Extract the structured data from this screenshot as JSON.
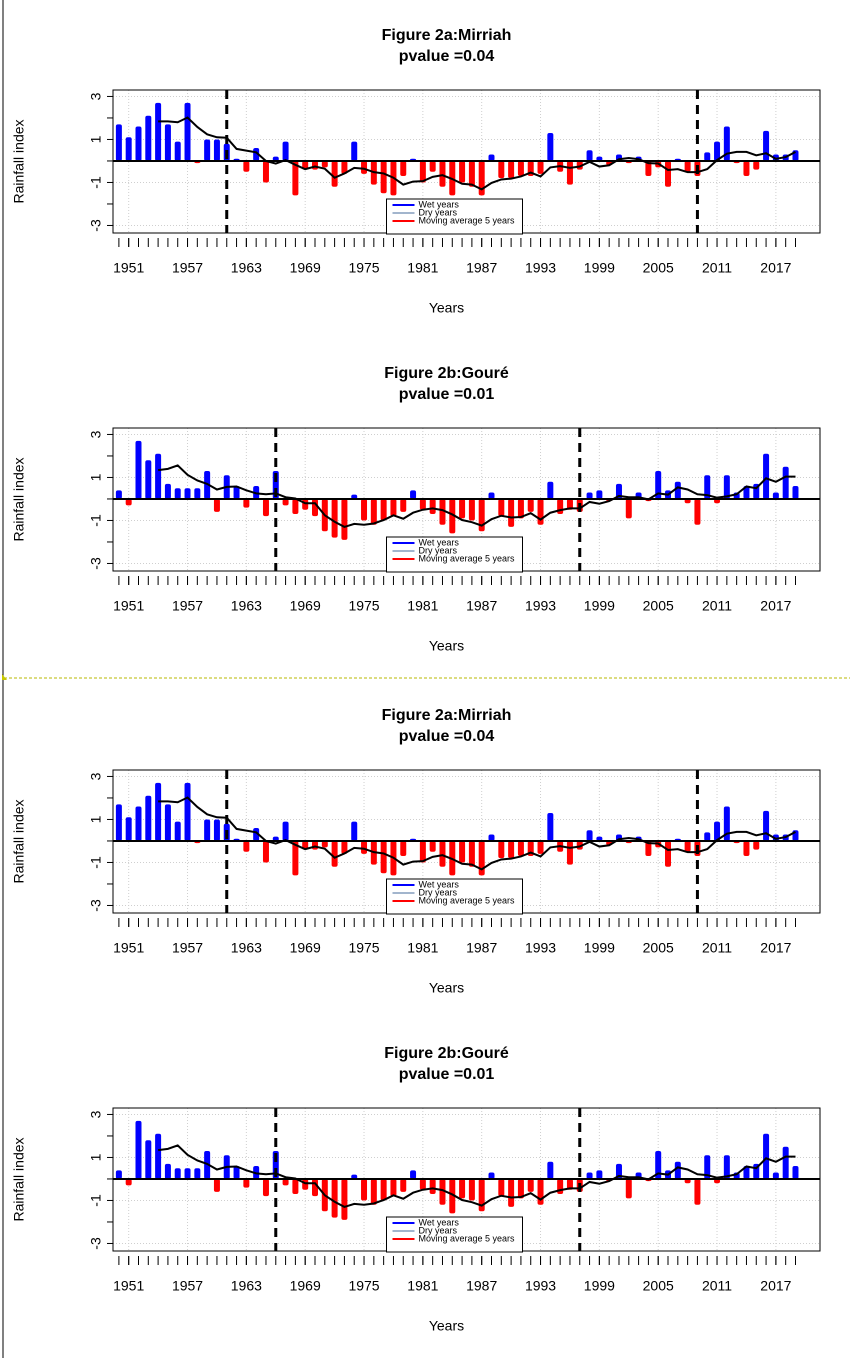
{
  "chart_data": [
    {
      "type": "bar",
      "title": "Figure 2a:Mirriah",
      "subtitle": "pvalue =0.04",
      "x_label": "Years",
      "y_label": "Rainfall index",
      "x": [
        1950,
        1951,
        1952,
        1953,
        1954,
        1955,
        1956,
        1957,
        1958,
        1959,
        1960,
        1961,
        1962,
        1963,
        1964,
        1965,
        1966,
        1967,
        1968,
        1969,
        1970,
        1971,
        1972,
        1973,
        1974,
        1975,
        1976,
        1977,
        1978,
        1979,
        1980,
        1981,
        1982,
        1983,
        1984,
        1985,
        1986,
        1987,
        1988,
        1989,
        1990,
        1991,
        1992,
        1993,
        1994,
        1995,
        1996,
        1997,
        1998,
        1999,
        2000,
        2001,
        2002,
        2003,
        2004,
        2005,
        2006,
        2007,
        2008,
        2009,
        2010,
        2011,
        2012,
        2013,
        2014,
        2015,
        2016,
        2017,
        2018,
        2019
      ],
      "values": [
        1.7,
        1.1,
        1.6,
        2.1,
        2.7,
        1.7,
        0.9,
        2.7,
        -0.1,
        1,
        1,
        0.8,
        0.1,
        -0.5,
        0.6,
        -1,
        0.2,
        0.9,
        -1.6,
        -0.4,
        -0.4,
        -0.3,
        -1.2,
        -0.6,
        0.9,
        -0.6,
        -1.1,
        -1.5,
        -1.6,
        -0.7,
        0.1,
        -1,
        -0.5,
        -1.2,
        -1.6,
        -1,
        -1.2,
        -1.6,
        0.3,
        -0.8,
        -0.8,
        -0.7,
        -0.7,
        -0.6,
        1.3,
        -0.5,
        -1.1,
        -0.4,
        0.5,
        0.2,
        -0.2,
        0.3,
        -0.1,
        0.2,
        -0.7,
        -0.3,
        -1.2,
        0.1,
        -0.5,
        -0.7,
        0.4,
        0.9,
        1.6,
        -0.1,
        -0.7,
        -0.4,
        1.4,
        0.3,
        0.3,
        0.5
      ],
      "positive_color": "#0000ff",
      "negative_color": "#ff0000",
      "moving_average": {
        "color": "#000000",
        "values": [
          null,
          null,
          null,
          null,
          1.84,
          1.84,
          1.8,
          2.02,
          1.58,
          1.24,
          1.1,
          1.08,
          0.56,
          0.48,
          0.4,
          0,
          -0.12,
          0.04,
          -0.18,
          -0.38,
          -0.26,
          -0.36,
          -0.78,
          -0.58,
          -0.32,
          -0.36,
          -0.52,
          -0.58,
          -0.78,
          -1.1,
          -0.96,
          -0.94,
          -0.74,
          -0.66,
          -0.84,
          -1.06,
          -1.1,
          -1.32,
          -1.02,
          -0.86,
          -0.82,
          -0.72,
          -0.54,
          -0.72,
          -0.3,
          -0.24,
          -0.32,
          -0.26,
          -0.04,
          -0.26,
          -0.2,
          0.08,
          0.14,
          0.08,
          -0.1,
          -0.12,
          -0.42,
          -0.38,
          -0.52,
          -0.52,
          -0.38,
          0.04,
          0.34,
          0.42,
          0.42,
          0.26,
          0.36,
          0.1,
          0.18,
          0.42
        ]
      },
      "change_points": [
        1961,
        2009
      ],
      "legend": [
        {
          "label": "Wet years",
          "color": "#0000ff"
        },
        {
          "label": "Dry years",
          "color": "#a2b5cd"
        },
        {
          "label": "Moving average 5 years",
          "color": "#ff0000"
        }
      ],
      "legend_position": "bottom",
      "xlim": [
        1949.4,
        2021.5
      ],
      "xticks": [
        1951,
        1957,
        1963,
        1969,
        1975,
        1981,
        1987,
        1993,
        1999,
        2005,
        2011,
        2017
      ],
      "ylim": [
        -3.35,
        3.3
      ],
      "yticks": [
        -3,
        -1,
        1,
        3
      ],
      "yminor": [
        -2,
        0,
        2
      ],
      "grid": true
    },
    {
      "type": "bar",
      "title": "Figure 2b:Gouré",
      "subtitle": "pvalue =0.01",
      "x_label": "Years",
      "y_label": "Rainfall index",
      "x": [
        1950,
        1951,
        1952,
        1953,
        1954,
        1955,
        1956,
        1957,
        1958,
        1959,
        1960,
        1961,
        1962,
        1963,
        1964,
        1965,
        1966,
        1967,
        1968,
        1969,
        1970,
        1971,
        1972,
        1973,
        1974,
        1975,
        1976,
        1977,
        1978,
        1979,
        1980,
        1981,
        1982,
        1983,
        1984,
        1985,
        1986,
        1987,
        1988,
        1989,
        1990,
        1991,
        1992,
        1993,
        1994,
        1995,
        1996,
        1997,
        1998,
        1999,
        2000,
        2001,
        2002,
        2003,
        2004,
        2005,
        2006,
        2007,
        2008,
        2009,
        2010,
        2011,
        2012,
        2013,
        2014,
        2015,
        2016,
        2017,
        2018,
        2019
      ],
      "values": [
        0.4,
        -0.3,
        2.7,
        1.8,
        2.1,
        0.7,
        0.5,
        0.5,
        0.5,
        1.3,
        -0.6,
        1.1,
        0.6,
        -0.4,
        0.6,
        -0.8,
        1.3,
        -0.3,
        -0.7,
        -0.5,
        -0.8,
        -1.5,
        -1.8,
        -1.9,
        0.2,
        -1,
        -1.2,
        -1,
        -0.8,
        -0.6,
        0.4,
        -0.5,
        -0.7,
        -1.2,
        -1.6,
        -0.9,
        -1,
        -1.5,
        0.3,
        -0.8,
        -1.3,
        -0.9,
        -0.6,
        -1.2,
        0.8,
        -0.7,
        -0.5,
        -0.6,
        0.3,
        0.4,
        -0.1,
        0.7,
        -0.9,
        0.3,
        -0.1,
        1.3,
        0.4,
        0.8,
        -0.2,
        -1.2,
        1.1,
        -0.2,
        1.1,
        0.3,
        0.6,
        0.7,
        2.1,
        0.3,
        1.5,
        0.6
      ],
      "positive_color": "#0000ff",
      "negative_color": "#ff0000",
      "moving_average": {
        "color": "#000000",
        "values": [
          null,
          null,
          null,
          null,
          1.34,
          1.4,
          1.56,
          1.12,
          0.86,
          0.7,
          0.44,
          0.56,
          0.58,
          0.4,
          0.26,
          0.22,
          0.26,
          0.08,
          0.02,
          -0.2,
          -0.2,
          -0.76,
          -1.06,
          -1.3,
          -1.16,
          -1.2,
          -1.14,
          -0.98,
          -0.76,
          -0.92,
          -0.64,
          -0.5,
          -0.44,
          -0.52,
          -0.72,
          -0.98,
          -1.08,
          -1.24,
          -0.94,
          -0.78,
          -0.86,
          -0.84,
          -0.66,
          -0.96,
          -0.64,
          -0.52,
          -0.44,
          -0.44,
          -0.14,
          -0.22,
          -0.1,
          0.14,
          0.08,
          0.08,
          -0.02,
          0.26,
          0.2,
          0.54,
          0.44,
          0.22,
          0.18,
          0.06,
          0.12,
          0.22,
          0.58,
          0.5,
          0.96,
          0.8,
          1.04,
          1.04
        ]
      },
      "change_points": [
        1966,
        1997
      ],
      "legend": [
        {
          "label": "Wet years",
          "color": "#0000ff"
        },
        {
          "label": "Dry years",
          "color": "#a2b5cd"
        },
        {
          "label": "Moving average 5 years",
          "color": "#ff0000"
        }
      ],
      "legend_position": "bottom",
      "xlim": [
        1949.4,
        2021.5
      ],
      "xticks": [
        1951,
        1957,
        1963,
        1969,
        1975,
        1981,
        1987,
        1993,
        1999,
        2005,
        2011,
        2017
      ],
      "ylim": [
        -3.35,
        3.3
      ],
      "yticks": [
        -3,
        -1,
        1,
        3
      ],
      "yminor": [
        -2,
        0,
        2
      ],
      "grid": true
    },
    {
      "type": "bar",
      "title": "Figure 2a:Mirriah",
      "subtitle": "pvalue =0.04",
      "x_label": "Years",
      "y_label": "Rainfall index",
      "x": [
        1950,
        1951,
        1952,
        1953,
        1954,
        1955,
        1956,
        1957,
        1958,
        1959,
        1960,
        1961,
        1962,
        1963,
        1964,
        1965,
        1966,
        1967,
        1968,
        1969,
        1970,
        1971,
        1972,
        1973,
        1974,
        1975,
        1976,
        1977,
        1978,
        1979,
        1980,
        1981,
        1982,
        1983,
        1984,
        1985,
        1986,
        1987,
        1988,
        1989,
        1990,
        1991,
        1992,
        1993,
        1994,
        1995,
        1996,
        1997,
        1998,
        1999,
        2000,
        2001,
        2002,
        2003,
        2004,
        2005,
        2006,
        2007,
        2008,
        2009,
        2010,
        2011,
        2012,
        2013,
        2014,
        2015,
        2016,
        2017,
        2018,
        2019
      ],
      "values": [
        1.7,
        1.1,
        1.6,
        2.1,
        2.7,
        1.7,
        0.9,
        2.7,
        -0.1,
        1,
        1,
        0.8,
        0.1,
        -0.5,
        0.6,
        -1,
        0.2,
        0.9,
        -1.6,
        -0.4,
        -0.4,
        -0.3,
        -1.2,
        -0.6,
        0.9,
        -0.6,
        -1.1,
        -1.5,
        -1.6,
        -0.7,
        0.1,
        -1,
        -0.5,
        -1.2,
        -1.6,
        -1,
        -1.2,
        -1.6,
        0.3,
        -0.8,
        -0.8,
        -0.7,
        -0.7,
        -0.6,
        1.3,
        -0.5,
        -1.1,
        -0.4,
        0.5,
        0.2,
        -0.2,
        0.3,
        -0.1,
        0.2,
        -0.7,
        -0.3,
        -1.2,
        0.1,
        -0.5,
        -0.7,
        0.4,
        0.9,
        1.6,
        -0.1,
        -0.7,
        -0.4,
        1.4,
        0.3,
        0.3,
        0.5
      ],
      "positive_color": "#0000ff",
      "negative_color": "#ff0000",
      "moving_average": {
        "color": "#000000",
        "values": [
          null,
          null,
          null,
          null,
          1.84,
          1.84,
          1.8,
          2.02,
          1.58,
          1.24,
          1.1,
          1.08,
          0.56,
          0.48,
          0.4,
          0,
          -0.12,
          0.04,
          -0.18,
          -0.38,
          -0.26,
          -0.36,
          -0.78,
          -0.58,
          -0.32,
          -0.36,
          -0.52,
          -0.58,
          -0.78,
          -1.1,
          -0.96,
          -0.94,
          -0.74,
          -0.66,
          -0.84,
          -1.06,
          -1.1,
          -1.32,
          -1.02,
          -0.86,
          -0.82,
          -0.72,
          -0.54,
          -0.72,
          -0.3,
          -0.24,
          -0.32,
          -0.26,
          -0.04,
          -0.26,
          -0.2,
          0.08,
          0.14,
          0.08,
          -0.1,
          -0.12,
          -0.42,
          -0.38,
          -0.52,
          -0.52,
          -0.38,
          0.04,
          0.34,
          0.42,
          0.42,
          0.26,
          0.36,
          0.1,
          0.18,
          0.42
        ]
      },
      "change_points": [
        1961,
        2009
      ],
      "legend": [
        {
          "label": "Wet years",
          "color": "#0000ff"
        },
        {
          "label": "Dry years",
          "color": "#a2b5cd"
        },
        {
          "label": "Moving average 5 years",
          "color": "#ff0000"
        }
      ],
      "legend_position": "bottom",
      "xlim": [
        1949.4,
        2021.5
      ],
      "xticks": [
        1951,
        1957,
        1963,
        1969,
        1975,
        1981,
        1987,
        1993,
        1999,
        2005,
        2011,
        2017
      ],
      "ylim": [
        -3.35,
        3.3
      ],
      "yticks": [
        -3,
        -1,
        1,
        3
      ],
      "yminor": [
        -2,
        0,
        2
      ],
      "grid": true
    },
    {
      "type": "bar",
      "title": "Figure 2b:Gouré",
      "subtitle": "pvalue =0.01",
      "x_label": "Years",
      "y_label": "Rainfall index",
      "x": [
        1950,
        1951,
        1952,
        1953,
        1954,
        1955,
        1956,
        1957,
        1958,
        1959,
        1960,
        1961,
        1962,
        1963,
        1964,
        1965,
        1966,
        1967,
        1968,
        1969,
        1970,
        1971,
        1972,
        1973,
        1974,
        1975,
        1976,
        1977,
        1978,
        1979,
        1980,
        1981,
        1982,
        1983,
        1984,
        1985,
        1986,
        1987,
        1988,
        1989,
        1990,
        1991,
        1992,
        1993,
        1994,
        1995,
        1996,
        1997,
        1998,
        1999,
        2000,
        2001,
        2002,
        2003,
        2004,
        2005,
        2006,
        2007,
        2008,
        2009,
        2010,
        2011,
        2012,
        2013,
        2014,
        2015,
        2016,
        2017,
        2018,
        2019
      ],
      "values": [
        0.4,
        -0.3,
        2.7,
        1.8,
        2.1,
        0.7,
        0.5,
        0.5,
        0.5,
        1.3,
        -0.6,
        1.1,
        0.6,
        -0.4,
        0.6,
        -0.8,
        1.3,
        -0.3,
        -0.7,
        -0.5,
        -0.8,
        -1.5,
        -1.8,
        -1.9,
        0.2,
        -1,
        -1.2,
        -1,
        -0.8,
        -0.6,
        0.4,
        -0.5,
        -0.7,
        -1.2,
        -1.6,
        -0.9,
        -1,
        -1.5,
        0.3,
        -0.8,
        -1.3,
        -0.9,
        -0.6,
        -1.2,
        0.8,
        -0.7,
        -0.5,
        -0.6,
        0.3,
        0.4,
        -0.1,
        0.7,
        -0.9,
        0.3,
        -0.1,
        1.3,
        0.4,
        0.8,
        -0.2,
        -1.2,
        1.1,
        -0.2,
        1.1,
        0.3,
        0.6,
        0.7,
        2.1,
        0.3,
        1.5,
        0.6
      ],
      "positive_color": "#0000ff",
      "negative_color": "#ff0000",
      "moving_average": {
        "color": "#000000",
        "values": [
          null,
          null,
          null,
          null,
          1.34,
          1.4,
          1.56,
          1.12,
          0.86,
          0.7,
          0.44,
          0.56,
          0.58,
          0.4,
          0.26,
          0.22,
          0.26,
          0.08,
          0.02,
          -0.2,
          -0.2,
          -0.76,
          -1.06,
          -1.3,
          -1.16,
          -1.2,
          -1.14,
          -0.98,
          -0.76,
          -0.92,
          -0.64,
          -0.5,
          -0.44,
          -0.52,
          -0.72,
          -0.98,
          -1.08,
          -1.24,
          -0.94,
          -0.78,
          -0.86,
          -0.84,
          -0.66,
          -0.96,
          -0.64,
          -0.52,
          -0.44,
          -0.44,
          -0.14,
          -0.22,
          -0.1,
          0.14,
          0.08,
          0.08,
          -0.02,
          0.26,
          0.2,
          0.54,
          0.44,
          0.22,
          0.18,
          0.06,
          0.12,
          0.22,
          0.58,
          0.5,
          0.96,
          0.8,
          1.04,
          1.04
        ]
      },
      "change_points": [
        1966,
        1997
      ],
      "legend": [
        {
          "label": "Wet years",
          "color": "#0000ff"
        },
        {
          "label": "Dry years",
          "color": "#a2b5cd"
        },
        {
          "label": "Moving average 5 years",
          "color": "#ff0000"
        }
      ],
      "legend_position": "bottom",
      "xlim": [
        1949.4,
        2021.5
      ],
      "xticks": [
        1951,
        1957,
        1963,
        1969,
        1975,
        1981,
        1987,
        1993,
        1999,
        2005,
        2011,
        2017
      ],
      "ylim": [
        -3.35,
        3.3
      ],
      "yticks": [
        -3,
        -1,
        1,
        3
      ],
      "yminor": [
        -2,
        0,
        2
      ],
      "grid": true
    }
  ]
}
